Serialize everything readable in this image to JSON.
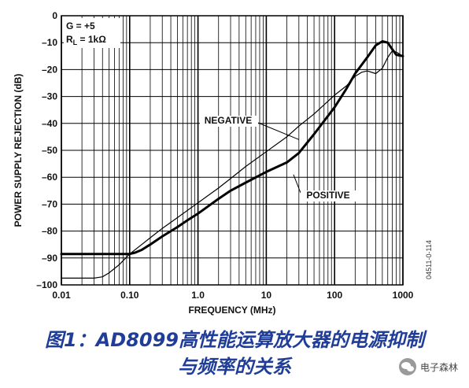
{
  "chart_data": {
    "type": "line",
    "xscale": "log",
    "xlim": [
      0.01,
      1000
    ],
    "ylim": [
      -100,
      0
    ],
    "grid": true,
    "xlabel": "FREQUENCY (MHz)",
    "ylabel": "POWER SUPPLY REJECTION (dB)",
    "x_ticks": [
      0.01,
      0.1,
      1,
      10,
      100,
      1000
    ],
    "x_tick_labels": [
      "0.01",
      "0.10",
      "1.0",
      "10",
      "100",
      "1000"
    ],
    "y_ticks": [
      0,
      -10,
      -20,
      -30,
      -40,
      -50,
      -60,
      -70,
      -80,
      -90,
      -100
    ],
    "y_tick_labels": [
      "0",
      "–10",
      "–20",
      "–30",
      "–40",
      "–50",
      "–60",
      "–70",
      "–80",
      "–90",
      "–100"
    ],
    "conditions": [
      "G = +5",
      "R",
      "L",
      " = 1kΩ"
    ],
    "figure_id": "04511-0-114",
    "series": [
      {
        "name": "NEGATIVE",
        "style": "thin",
        "color": "#000000",
        "x": [
          0.01,
          0.02,
          0.03,
          0.04,
          0.05,
          0.07,
          0.1,
          0.15,
          0.2,
          0.3,
          0.5,
          1,
          2,
          3,
          5,
          10,
          20,
          30,
          50,
          100,
          150,
          200,
          250,
          300,
          400,
          500,
          600,
          700,
          800,
          1000
        ],
        "y": [
          -97.5,
          -97.5,
          -97.5,
          -97,
          -95.5,
          -92.5,
          -88.5,
          -85,
          -82.5,
          -79,
          -75,
          -69.5,
          -64,
          -60.5,
          -56,
          -50.5,
          -45,
          -41,
          -36.5,
          -29.5,
          -26,
          -22.5,
          -21,
          -20.5,
          -21.5,
          -19.5,
          -15.5,
          -13,
          -13.5,
          -15
        ]
      },
      {
        "name": "POSITIVE",
        "style": "bold",
        "color": "#000000",
        "x": [
          0.01,
          0.03,
          0.05,
          0.07,
          0.1,
          0.12,
          0.15,
          0.2,
          0.3,
          0.5,
          0.7,
          1,
          2,
          3,
          5,
          10,
          20,
          30,
          50,
          100,
          150,
          200,
          300,
          400,
          500,
          600,
          700,
          800,
          1000
        ],
        "y": [
          -88.5,
          -88.5,
          -88.5,
          -88.5,
          -88.5,
          -88,
          -87,
          -85,
          -82,
          -78.5,
          -76,
          -73.5,
          -68,
          -65,
          -62,
          -58,
          -54.5,
          -51,
          -44,
          -34,
          -27,
          -21.5,
          -15.5,
          -11,
          -9.5,
          -10,
          -12.5,
          -14.5,
          -15
        ]
      }
    ],
    "annotations": [
      {
        "text": "NEGATIVE",
        "arrow_to_x": 30,
        "arrow_to_y": -46
      },
      {
        "text": "POSITIVE",
        "arrow_to_x": 25,
        "arrow_to_y": -59
      }
    ]
  },
  "caption": {
    "line1": "图1：AD8099高性能运算放大器的电源抑制",
    "line2": "与频率的关系"
  },
  "watermark": {
    "icon": "wechat-icon",
    "text": "电子森林"
  }
}
